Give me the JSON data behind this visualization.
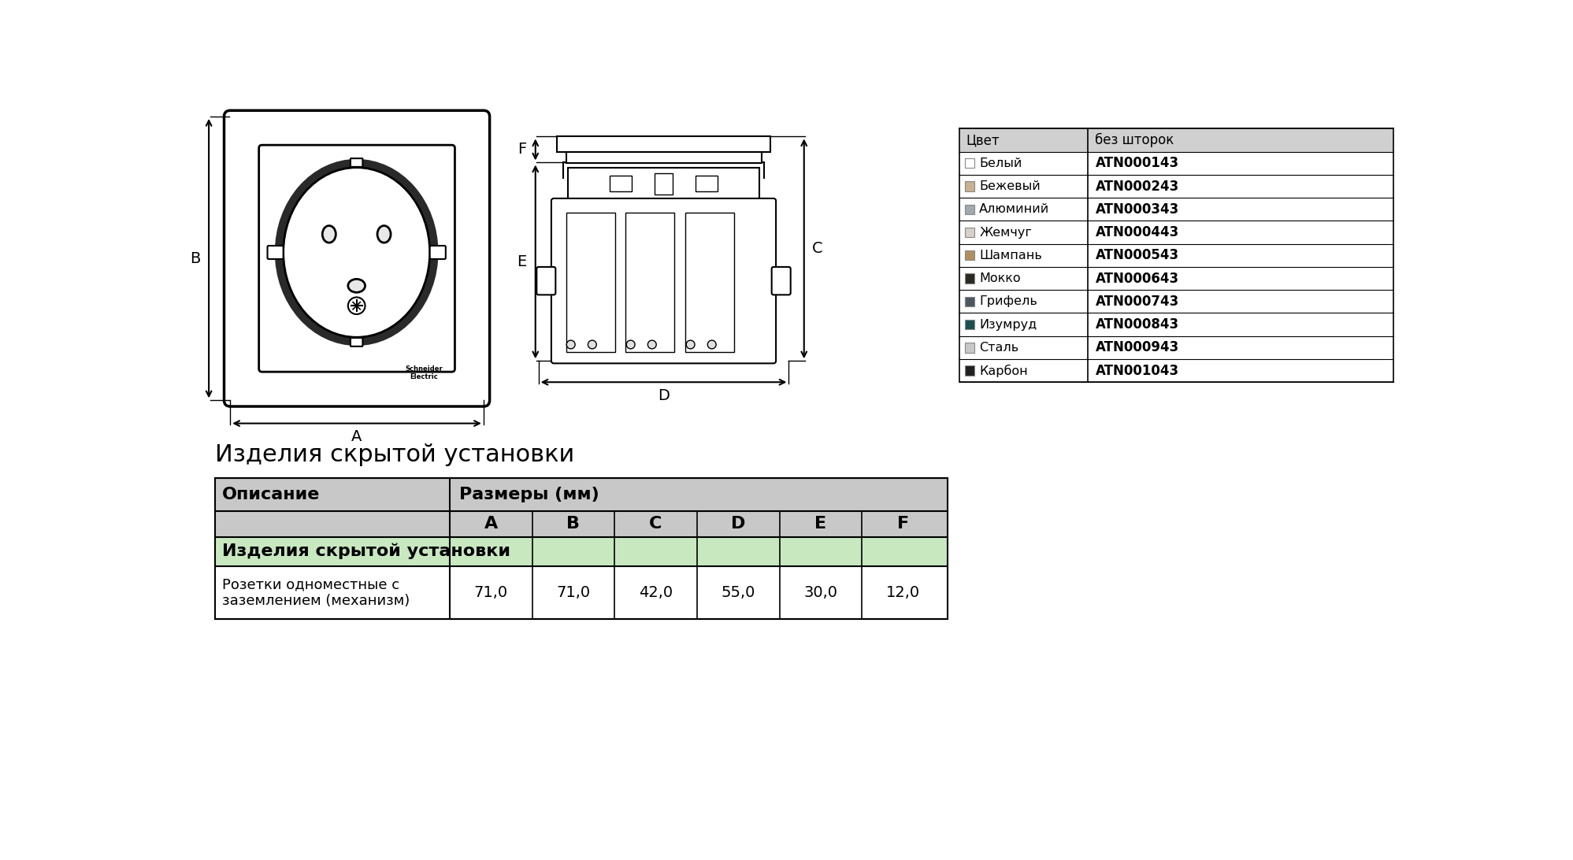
{
  "bg_color": "#ffffff",
  "title_text": "Изделия скрытой установки",
  "table_header_col1": "Описание",
  "table_header_col2": "Размеры (мм)",
  "table_sub_headers": [
    "A",
    "B",
    "C",
    "D",
    "E",
    "F"
  ],
  "table_row_group": "Изделия скрытой установки",
  "table_row_desc": "Розетки одноместные с\nзаземлением (механизм)",
  "table_row_values": [
    "71,0",
    "71,0",
    "42,0",
    "55,0",
    "30,0",
    "12,0"
  ],
  "color_table_header": [
    "Цвет",
    "без шторок"
  ],
  "color_rows": [
    {
      "name": "Белый",
      "color": "#ffffff",
      "code": "ATN000143"
    },
    {
      "name": "Бежевый",
      "color": "#c8b090",
      "code": "ATN000243"
    },
    {
      "name": "Алюминий",
      "color": "#a0a8b0",
      "code": "ATN000343"
    },
    {
      "name": "Жемчуг",
      "color": "#d8d0c8",
      "code": "ATN000443"
    },
    {
      "name": "Шампань",
      "color": "#b09060",
      "code": "ATN000543"
    },
    {
      "name": "Мокко",
      "color": "#2a2a20",
      "code": "ATN000643"
    },
    {
      "name": "Грифель",
      "color": "#4a5860",
      "code": "ATN000743"
    },
    {
      "name": "Изумруд",
      "color": "#1a5050",
      "code": "ATN000843"
    },
    {
      "name": "Сталь",
      "color": "#c8c8c8",
      "code": "ATN000943"
    },
    {
      "name": "Карбон",
      "color": "#202020",
      "code": "ATN001043"
    }
  ],
  "table_bg_header": "#c8c8c8",
  "table_bg_subheader": "#c8c8c8",
  "table_bg_group_row": "#c8e8c0",
  "table_bg_white": "#ffffff",
  "color_table_bg_header": "#d0d0d0"
}
